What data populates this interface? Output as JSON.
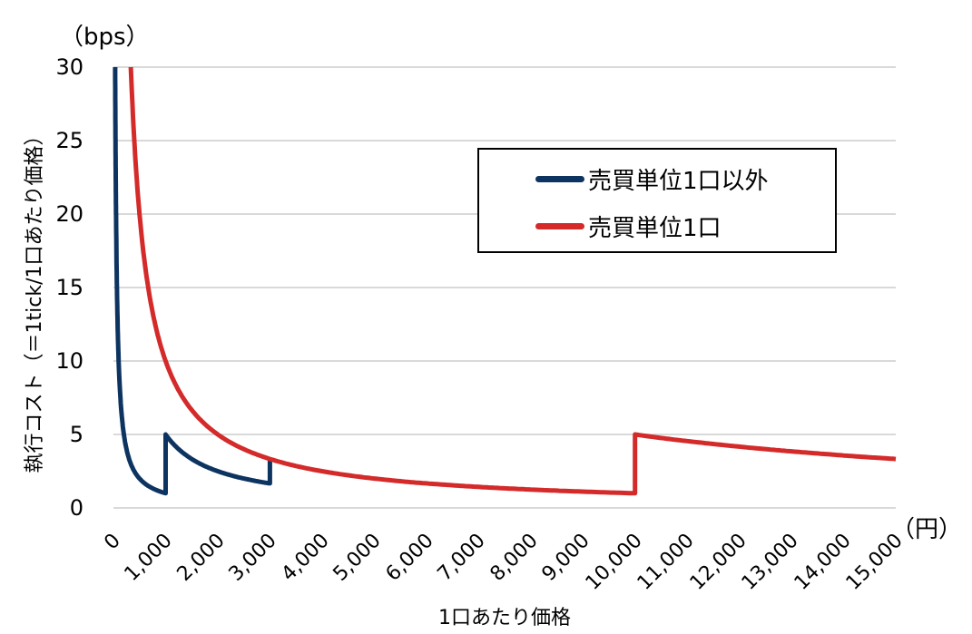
{
  "chart_data": {
    "type": "line",
    "title": "",
    "xlabel": "1口あたり価格",
    "ylabel": "執行コスト（＝1tick/1口あたり価格）",
    "x_unit": "(円)",
    "y_unit": "(bps)",
    "xlim": [
      0,
      15000
    ],
    "ylim": [
      0,
      30
    ],
    "grid": "horizontal",
    "legend_position": "upper right (inside)",
    "x_ticks": [
      "0",
      "1,000",
      "2,000",
      "3,000",
      "4,000",
      "5,000",
      "6,000",
      "7,000",
      "8,000",
      "9,000",
      "10,000",
      "11,000",
      "12,000",
      "13,000",
      "14,000",
      "15,000"
    ],
    "y_ticks": [
      "0",
      "5",
      "10",
      "15",
      "20",
      "25",
      "30"
    ],
    "series": [
      {
        "name": "売買単位1口以外",
        "color": "#0d3461",
        "x": [
          33,
          50,
          100,
          200,
          300,
          500,
          700,
          1000,
          1000,
          1500,
          2000,
          2500,
          3000,
          3000
        ],
        "y": [
          30,
          20,
          10,
          5,
          3.33,
          2,
          1.43,
          1,
          5,
          3.33,
          2.5,
          2,
          1.67,
          3.33
        ]
      },
      {
        "name": "売買単位1口",
        "color": "#d42a2a",
        "x": [
          333,
          500,
          750,
          1000,
          1500,
          2000,
          3000,
          4000,
          5000,
          6000,
          7000,
          8000,
          9000,
          10000,
          10000,
          11000,
          12000,
          13000,
          14000,
          15000
        ],
        "y": [
          30,
          20,
          13.33,
          10,
          6.67,
          5,
          3.33,
          2.5,
          2,
          1.67,
          1.43,
          1.25,
          1.11,
          1,
          5,
          4.55,
          4.17,
          3.85,
          3.57,
          3.33
        ]
      }
    ]
  },
  "labels": {
    "y_unit": "（bps）",
    "x_unit": "（円）",
    "ylabel": "執行コスト（＝1tick/1口あたり価格）",
    "xlabel": "1口あたり価格"
  },
  "legend": {
    "items": [
      {
        "label": "売買単位1口以外",
        "color": "#0d3461"
      },
      {
        "label": "売買単位1口",
        "color": "#d42a2a"
      }
    ]
  }
}
